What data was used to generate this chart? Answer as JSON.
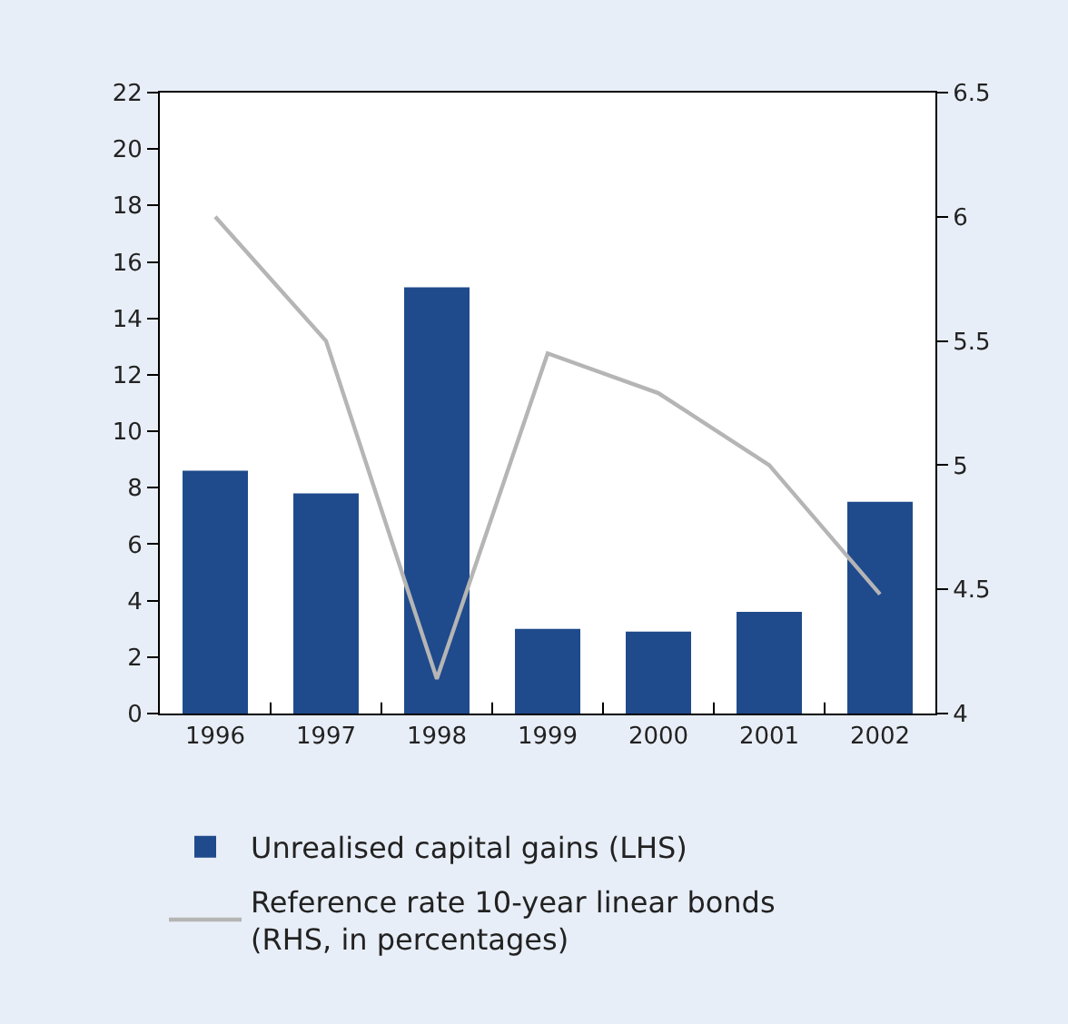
{
  "chart_data": {
    "type": "bar",
    "categories": [
      "1996",
      "1997",
      "1998",
      "1999",
      "2000",
      "2001",
      "2002"
    ],
    "series": [
      {
        "name": "Unrealised capital gains (LHS)",
        "color": "#1f4a8c",
        "values": [
          8.6,
          7.8,
          15.1,
          3.0,
          2.9,
          3.6,
          7.5
        ]
      },
      {
        "name": "Reference rate 10-year linear bonds (RHS, in percentages)",
        "type": "line",
        "axis": "y2",
        "color": "#b5b5b5",
        "values": [
          6.0,
          5.5,
          4.14,
          5.45,
          5.29,
          5.0,
          4.48
        ]
      }
    ],
    "ylim": [
      0,
      22
    ],
    "yticks": [
      0,
      2,
      4,
      6,
      8,
      10,
      12,
      14,
      16,
      18,
      20,
      22
    ],
    "y2lim": [
      4,
      6.5
    ],
    "y2ticks": [
      4,
      4.5,
      5,
      5.5,
      6,
      6.5
    ],
    "legend": "bottom left",
    "marker": "none",
    "line_style": "solid"
  }
}
